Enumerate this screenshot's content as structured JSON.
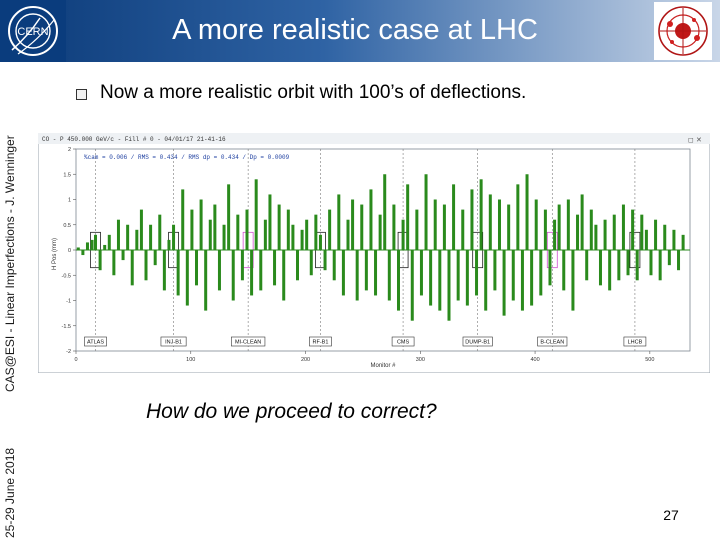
{
  "header": {
    "title": "A more realistic case at LHC"
  },
  "sidebar": {
    "date": "25-29 June 2018",
    "course": "CAS@ESI - Linear Imperfections - J. Wenninger"
  },
  "logos": {
    "left": "CERN",
    "left_icon": "cern-logo-icon",
    "right_icon": "lhc-collision-logo-icon"
  },
  "bullet": "Now a more realistic orbit with 100’s of deflections.",
  "question": "How do we proceed to correct?",
  "page_number": "27",
  "colors": {
    "header_dark": "#0b3a78",
    "bar_green": "#2a8a1c",
    "marker_pink": "#d050d0",
    "marker_dark": "#202020"
  },
  "chart_data": {
    "type": "bar",
    "header_text": "CO - P 450.000 GeV/c - Fill # 0 - 04/01/17 21-41-16",
    "stats_text": "%cam = 0.006 / RMS = 0.434 / RMS dp = 0.434 / Dp = 0.0009",
    "xlabel": "Monitor #",
    "ylabel": "H Pos (mm)",
    "xlim": [
      0,
      535
    ],
    "ylim": [
      -2,
      2
    ],
    "x_ticks": [
      {
        "value": 0,
        "label": "0"
      },
      {
        "value": 100,
        "label": "100"
      },
      {
        "value": 200,
        "label": "200"
      },
      {
        "value": 300,
        "label": "300"
      },
      {
        "value": 400,
        "label": "400"
      },
      {
        "value": 500,
        "label": "500"
      }
    ],
    "y_ticks": [
      {
        "value": 2,
        "label": "2"
      },
      {
        "value": 1.5,
        "label": "1.5"
      },
      {
        "value": 1,
        "label": "1"
      },
      {
        "value": 0.5,
        "label": "0.5"
      },
      {
        "value": 0,
        "label": "0"
      },
      {
        "value": -0.5,
        "label": "-0.5"
      },
      {
        "value": -1,
        "label": "-1"
      },
      {
        "value": -1.5,
        "label": "-1.5"
      },
      {
        "value": -2,
        "label": "-2"
      }
    ],
    "ip_markers": [
      {
        "label": "ATLAS",
        "x": 17
      },
      {
        "label": "INJ-B1",
        "x": 85
      },
      {
        "label": "MI-CLEAN",
        "x": 150
      },
      {
        "label": "RF-B1",
        "x": 213
      },
      {
        "label": "CMS",
        "x": 285
      },
      {
        "label": "DUMP-B1",
        "x": 350
      },
      {
        "label": "B-CLEAN",
        "x": 415
      },
      {
        "label": "LHCB",
        "x": 487
      }
    ],
    "x": [
      2,
      6,
      10,
      14,
      17,
      21,
      25,
      29,
      33,
      37,
      41,
      45,
      49,
      53,
      57,
      61,
      65,
      69,
      73,
      77,
      81,
      85,
      89,
      93,
      97,
      101,
      105,
      109,
      113,
      117,
      121,
      125,
      129,
      133,
      137,
      141,
      145,
      149,
      153,
      157,
      161,
      165,
      169,
      173,
      177,
      181,
      185,
      189,
      193,
      197,
      201,
      205,
      209,
      213,
      217,
      221,
      225,
      229,
      233,
      237,
      241,
      245,
      249,
      253,
      257,
      261,
      265,
      269,
      273,
      277,
      281,
      285,
      289,
      293,
      297,
      301,
      305,
      309,
      313,
      317,
      321,
      325,
      329,
      333,
      337,
      341,
      345,
      349,
      353,
      357,
      361,
      365,
      369,
      373,
      377,
      381,
      385,
      389,
      393,
      397,
      401,
      405,
      409,
      413,
      417,
      421,
      425,
      429,
      433,
      437,
      441,
      445,
      449,
      453,
      457,
      461,
      465,
      469,
      473,
      477,
      481,
      485,
      489,
      493,
      497,
      501,
      505,
      509,
      513,
      517,
      521,
      525,
      529
    ],
    "values": [
      0.05,
      -0.1,
      0.15,
      0.2,
      0.3,
      -0.4,
      0.1,
      0.3,
      -0.5,
      0.6,
      -0.2,
      0.5,
      -0.7,
      0.4,
      0.8,
      -0.6,
      0.5,
      -0.3,
      0.7,
      -0.8,
      0.2,
      0.5,
      -0.9,
      1.2,
      -1.1,
      0.8,
      -0.7,
      1.0,
      -1.2,
      0.6,
      0.9,
      -0.8,
      0.5,
      1.3,
      -1.0,
      0.7,
      -0.6,
      0.8,
      -0.9,
      1.4,
      -0.8,
      0.6,
      1.1,
      -0.7,
      0.9,
      -1.0,
      0.8,
      0.5,
      -0.6,
      0.4,
      0.6,
      -0.5,
      0.7,
      0.3,
      -0.4,
      0.8,
      -0.6,
      1.1,
      -0.9,
      0.6,
      1.0,
      -1.0,
      0.9,
      -0.8,
      1.2,
      -0.9,
      0.7,
      1.5,
      -1.0,
      0.9,
      -1.2,
      0.6,
      1.3,
      -1.4,
      0.8,
      -0.9,
      1.5,
      -1.1,
      1.0,
      -1.2,
      0.9,
      -1.4,
      1.3,
      -1.0,
      0.8,
      -1.1,
      1.2,
      -0.9,
      1.4,
      -1.2,
      1.1,
      -0.8,
      1.0,
      -1.3,
      0.9,
      -1.0,
      1.3,
      -1.2,
      1.5,
      -1.1,
      1.0,
      -0.9,
      0.8,
      -0.7,
      0.6,
      0.9,
      -0.8,
      1.0,
      -1.2,
      0.7,
      1.1,
      -0.6,
      0.8,
      0.5,
      -0.7,
      0.6,
      -0.8,
      0.7,
      -0.6,
      0.9,
      -0.5,
      0.8,
      -0.6,
      0.7,
      0.4,
      -0.5,
      0.6,
      -0.6,
      0.5,
      -0.3,
      0.4,
      -0.4,
      0.3
    ]
  }
}
